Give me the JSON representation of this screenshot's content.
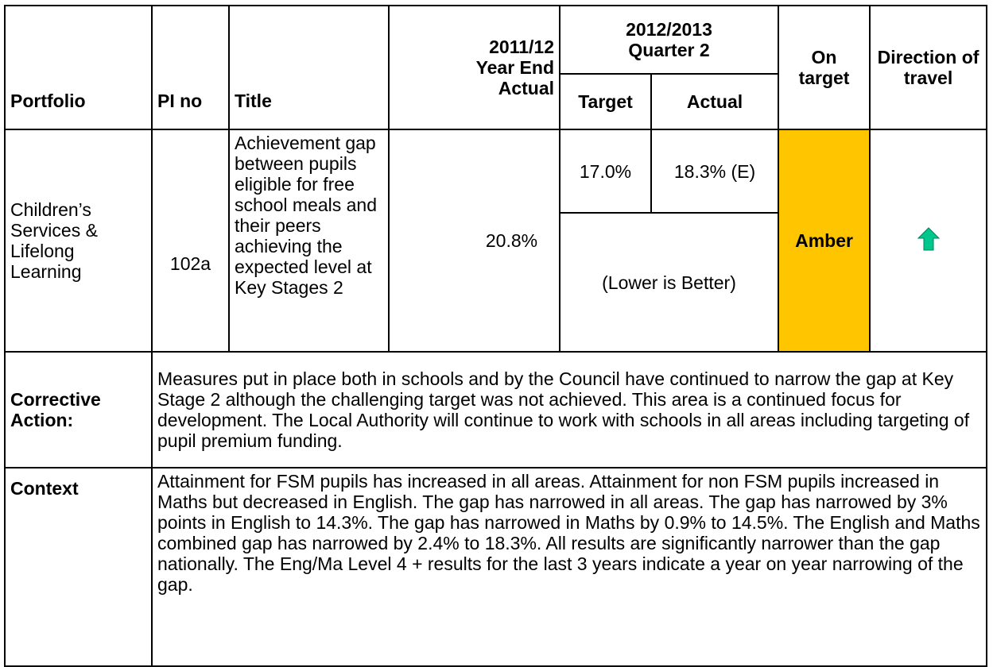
{
  "header": {
    "portfolio": "Portfolio",
    "pi_no": "PI no",
    "title": "Title",
    "year_end": "2011/12 Year End Actual",
    "quarter": "2012/2013 Quarter 2",
    "target": "Target",
    "actual": "Actual",
    "on_target": "On target",
    "direction": "Direction of travel"
  },
  "row": {
    "portfolio": "Children’s Services & Lifelong Learning",
    "pi_no": "102a",
    "title": "Achievement gap between pupils eligible for free school meals and their peers achieving the expected level at Key Stages 2",
    "year_end": "20.8%",
    "target": "17.0%",
    "actual": "18.3% (E)",
    "note": "(Lower is Better)",
    "status": "Amber"
  },
  "corrective": {
    "label": "Corrective Action:",
    "text": "Measures put in place both in schools and by the Council have continued to narrow the gap at Key Stage 2 although the challenging target was not achieved. This area is a continued focus for development. The Local Authority will continue to work with schools in all areas including targeting of pupil premium funding."
  },
  "context": {
    "label": "Context",
    "text": "Attainment for FSM pupils has increased in all areas. Attainment for non FSM pupils increased in Maths but decreased in English. The gap has narrowed in all areas. The gap has narrowed by 3% points in English to 14.3%. The gap has narrowed in Maths by 0.9% to 14.5%. The English and Maths combined gap has narrowed by 2.4% to 18.3%. All results are significantly narrower than the gap nationally. The Eng/Ma Level 4 + results for the last 3 years indicate a year on year narrowing of the gap."
  }
}
